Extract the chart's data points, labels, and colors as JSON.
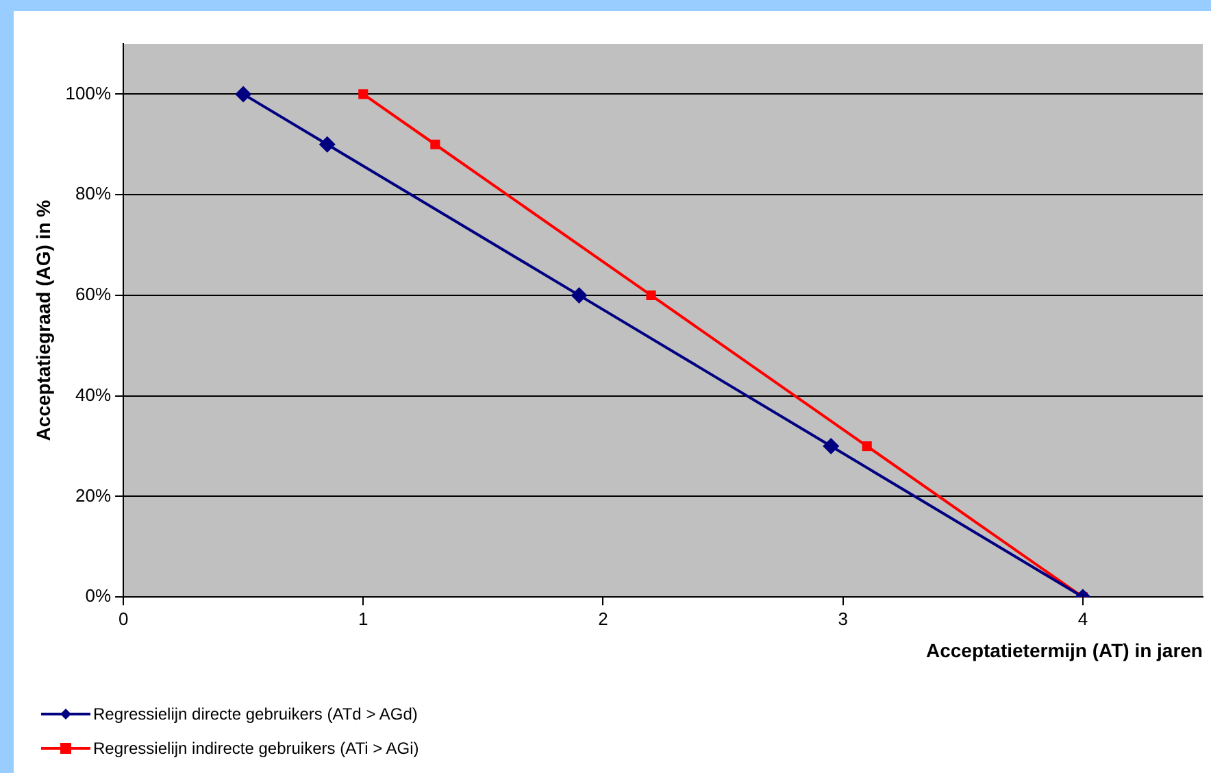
{
  "chart_data": {
    "type": "line",
    "xlabel": "Acceptatietermijn (AT) in jaren",
    "ylabel": "Acceptatiegraad (AG) in %",
    "xlim": [
      0,
      4.5
    ],
    "xticks": [
      0,
      1,
      2,
      3,
      4
    ],
    "ylim": [
      0,
      110
    ],
    "yticks": [
      {
        "value": 0,
        "label": "0%"
      },
      {
        "value": 20,
        "label": "20%"
      },
      {
        "value": 40,
        "label": "40%"
      },
      {
        "value": 60,
        "label": "60%"
      },
      {
        "value": 80,
        "label": "80%"
      },
      {
        "value": 100,
        "label": "100%"
      }
    ],
    "grid": "y",
    "legend": "bottom left",
    "line_style": "solid",
    "series": [
      {
        "name": "Regressielijn directe gebruikers (ATd > AGd)",
        "color": "#000080",
        "marker": "diamond",
        "x": [
          0.5,
          0.85,
          1.9,
          2.95,
          4
        ],
        "values": [
          100,
          90,
          60,
          30,
          0
        ]
      },
      {
        "name": "Regressielijn indirecte gebruikers (ATi > AGi)",
        "color": "#ff0000",
        "marker": "square",
        "x": [
          1,
          1.3,
          2.2,
          3.1,
          4
        ],
        "values": [
          100,
          90,
          60,
          30,
          0
        ]
      }
    ]
  }
}
